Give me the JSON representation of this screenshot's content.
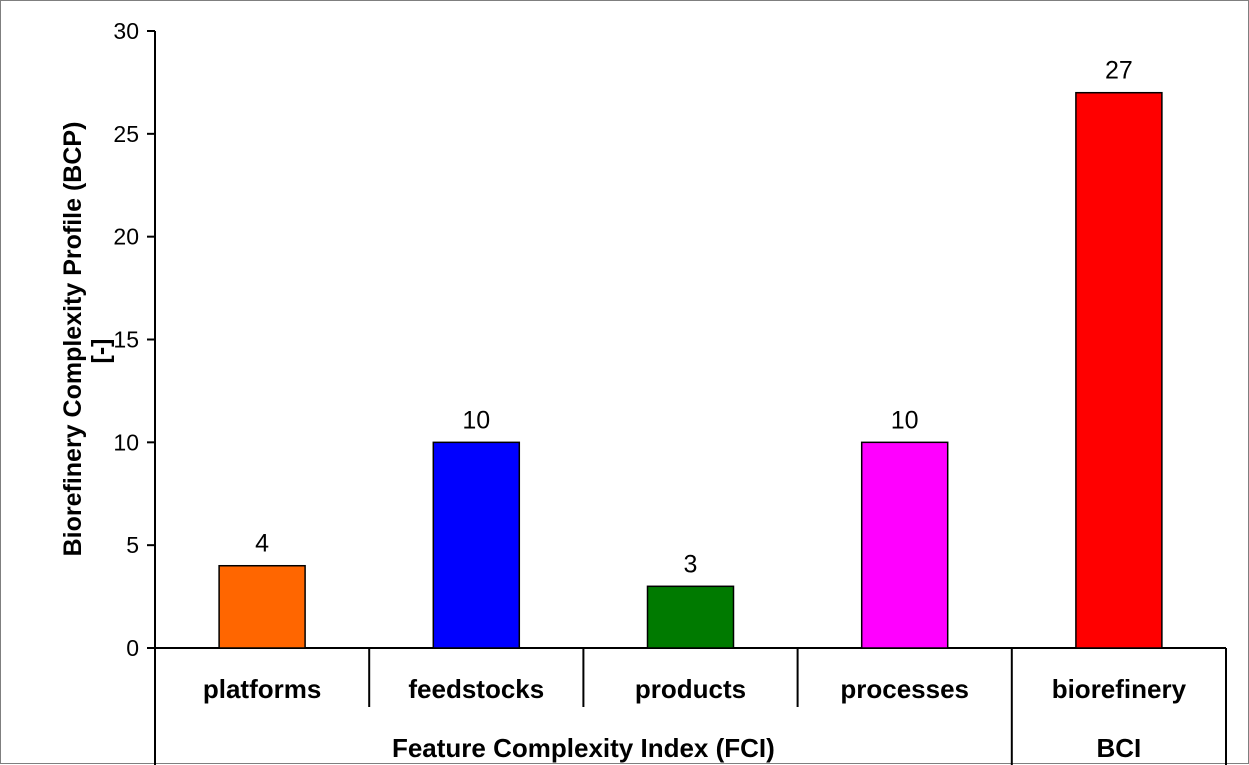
{
  "chart_data": {
    "type": "bar",
    "ylabel_line1": "Biorefinery Complexity Profile (BCP)",
    "ylabel_line2": "[-]",
    "xlabel": "",
    "ylim": [
      0,
      30
    ],
    "yticks": [
      0,
      5,
      10,
      15,
      20,
      25,
      30
    ],
    "grid": false,
    "categories": [
      "platforms",
      "feedstocks",
      "products",
      "processes",
      "biorefinery"
    ],
    "values": [
      4,
      10,
      3,
      10,
      27
    ],
    "value_labels": [
      "4",
      "10",
      "3",
      "10",
      "27"
    ],
    "colors": [
      "#ff6600",
      "#0000ff",
      "#007a00",
      "#ff00ff",
      "#ff0000"
    ],
    "groups": [
      {
        "label": "Feature Complexity Index (FCI)",
        "span": 4
      },
      {
        "label": "BCI",
        "span": 1
      }
    ]
  }
}
